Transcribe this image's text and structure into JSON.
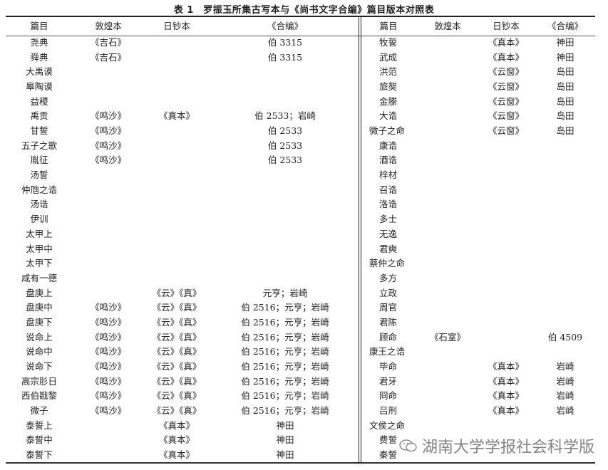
{
  "title": "表 1　罗振玉所集古写本与《尚书文字合编》篇目版本对照表",
  "headers": [
    "篇目",
    "敦煌本",
    "日钞本",
    "《合编》"
  ],
  "left_rows": [
    [
      "尧典",
      "《吉石》",
      "",
      "伯 3315"
    ],
    [
      "舜典",
      "《吉石》",
      "",
      "伯 3315"
    ],
    [
      "大禹谟",
      "",
      "",
      ""
    ],
    [
      "皋陶谟",
      "",
      "",
      ""
    ],
    [
      "益稷",
      "",
      "",
      ""
    ],
    [
      "禹贡",
      "《鸣沙》",
      "《真本》",
      "伯 2533；岩崎"
    ],
    [
      "甘誓",
      "《鸣沙》",
      "",
      "伯 2533"
    ],
    [
      "五子之歌",
      "《鸣沙》",
      "",
      "伯 2533"
    ],
    [
      "胤征",
      "《鸣沙》",
      "",
      "伯 2533"
    ],
    [
      "汤誓",
      "",
      "",
      ""
    ],
    [
      "仲虺之诰",
      "",
      "",
      ""
    ],
    [
      "汤诰",
      "",
      "",
      ""
    ],
    [
      "伊训",
      "",
      "",
      ""
    ],
    [
      "太甲上",
      "",
      "",
      ""
    ],
    [
      "太甲中",
      "",
      "",
      ""
    ],
    [
      "太甲下",
      "",
      "",
      ""
    ],
    [
      "咸有一德",
      "",
      "",
      ""
    ],
    [
      "盘庚上",
      "",
      "《云》《真》",
      "元亨；岩崎"
    ],
    [
      "盘庚中",
      "《鸣沙》",
      "《云》《真》",
      "伯 2516；元亨；岩崎"
    ],
    [
      "盘庚下",
      "《鸣沙》",
      "《云》《真》",
      "伯 2516；元亨；岩崎"
    ],
    [
      "说命上",
      "《鸣沙》",
      "《云》《真》",
      "伯 2516；元亨；岩崎"
    ],
    [
      "说命中",
      "《鸣沙》",
      "《云》《真》",
      "伯 2516；元亨；岩崎"
    ],
    [
      "说命下",
      "《鸣沙》",
      "《云》《真》",
      "伯 2516；元亨；岩崎"
    ],
    [
      "高宗肜日",
      "《鸣沙》",
      "《云》《真》",
      "伯 2516；元亨；岩崎"
    ],
    [
      "西伯戡黎",
      "《鸣沙》",
      "《云》《真》",
      "伯 2516；元亨；岩崎"
    ],
    [
      "微子",
      "《鸣沙》",
      "《云》《真》",
      "伯 2516；元亨；岩崎"
    ],
    [
      "泰誓上",
      "",
      "《真本》",
      "神田"
    ],
    [
      "泰誓中",
      "",
      "《真本》",
      "神田"
    ],
    [
      "泰誓下",
      "",
      "《真本》",
      "神田"
    ]
  ],
  "right_rows": [
    [
      "牧誓",
      "",
      "《真本》",
      "神田"
    ],
    [
      "武成",
      "",
      "《真本》",
      "神田"
    ],
    [
      "洪范",
      "",
      "《云窗》",
      "岛田"
    ],
    [
      "旅獒",
      "",
      "《云窗》",
      "岛田"
    ],
    [
      "金縢",
      "",
      "《云窗》",
      "岛田"
    ],
    [
      "大诰",
      "",
      "《云窗》",
      "岛田"
    ],
    [
      "微子之命",
      "",
      "《云窗》",
      "岛田"
    ],
    [
      "康诰",
      "",
      "",
      ""
    ],
    [
      "酒诰",
      "",
      "",
      ""
    ],
    [
      "梓材",
      "",
      "",
      ""
    ],
    [
      "召诰",
      "",
      "",
      ""
    ],
    [
      "洛诰",
      "",
      "",
      ""
    ],
    [
      "多士",
      "",
      "",
      ""
    ],
    [
      "无逸",
      "",
      "",
      ""
    ],
    [
      "君奭",
      "",
      "",
      ""
    ],
    [
      "蔡仲之命",
      "",
      "",
      ""
    ],
    [
      "多方",
      "",
      "",
      ""
    ],
    [
      "立政",
      "",
      "",
      ""
    ],
    [
      "周官",
      "",
      "",
      ""
    ],
    [
      "君陈",
      "",
      "",
      ""
    ],
    [
      "顾命",
      "《石室》",
      "",
      "伯 4509"
    ],
    [
      "康王之诰",
      "",
      "",
      ""
    ],
    [
      "毕命",
      "",
      "《真本》",
      "岩崎"
    ],
    [
      "君牙",
      "",
      "《真本》",
      "岩崎"
    ],
    [
      "冏命",
      "",
      "《真本》",
      "岩崎"
    ],
    [
      "吕刑",
      "",
      "《真本》",
      "岩崎"
    ],
    [
      "文侯之命",
      "",
      "",
      ""
    ],
    [
      "费誓",
      "",
      "",
      ""
    ],
    [
      "秦誓",
      "",
      "",
      ""
    ]
  ],
  "watermark": {
    "text": "湖南大学学报社会科学版",
    "icon": "wechat-icon"
  }
}
